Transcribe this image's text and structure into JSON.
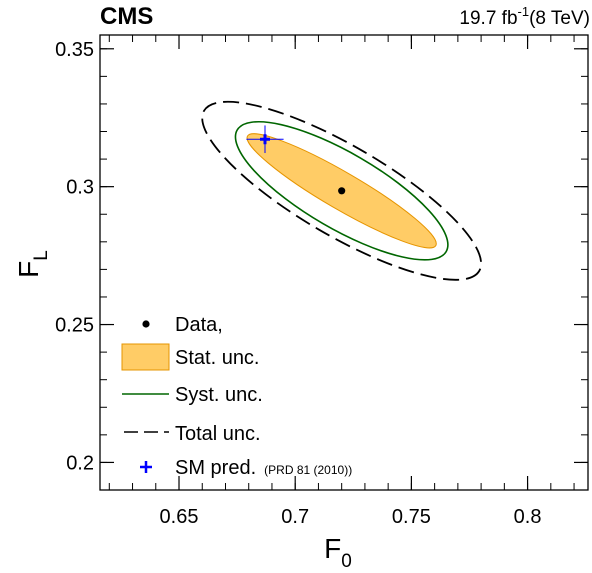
{
  "header": {
    "experiment": "CMS",
    "lumi_value": "19.7 fb",
    "lumi_exp": "-1",
    "lumi_energy": "(8 TeV)"
  },
  "axes": {
    "x_main": "F",
    "x_sub": "0",
    "y_main": "F",
    "y_sub": "L"
  },
  "legend": {
    "data_label": "Data,",
    "stat_label": "Stat. unc.",
    "syst_label": "Syst. unc.",
    "total_label": "Total unc.",
    "sm_label": "SM pred.",
    "sm_ref": "(PRD 81 (2010))"
  },
  "colors": {
    "stat_fill": "#ffcc66",
    "stat_edge": "#e69500",
    "syst_line": "#006600",
    "total_line": "#000000",
    "sm_marker": "#0000ff",
    "data_marker": "#000000"
  },
  "chart_data": {
    "type": "scatter",
    "xlim": [
      0.616,
      0.826
    ],
    "ylim": [
      0.19,
      0.355
    ],
    "xticks": [
      0.65,
      0.7,
      0.75,
      0.8
    ],
    "xtick_labels": [
      "0.65",
      "0.7",
      "0.75",
      "0.8"
    ],
    "yticks": [
      0.2,
      0.25,
      0.3,
      0.35
    ],
    "ytick_labels": [
      "0.2",
      "0.25",
      "0.3",
      "0.35"
    ],
    "grid": false,
    "legend_position": "bottom-left",
    "data_point": {
      "F0": 0.72,
      "FL": 0.2985
    },
    "sm_prediction": {
      "F0": 0.687,
      "FL": 0.311,
      "F0_err": 0.008,
      "FL_err": 0.005
    },
    "contours": [
      {
        "name": "Stat. unc.",
        "center": [
          0.72,
          0.2985
        ],
        "semi_axes": [
          0.0455,
          0.0051
        ],
        "angle_deg": -30.2
      },
      {
        "name": "Syst. unc.",
        "center": [
          0.72,
          0.2985
        ],
        "semi_axes": [
          0.0505,
          0.0105
        ],
        "angle_deg": -30.2
      },
      {
        "name": "Total unc.",
        "center": [
          0.72,
          0.2985
        ],
        "semi_axes": [
          0.0665,
          0.0125
        ],
        "angle_deg": -30.2
      }
    ]
  }
}
